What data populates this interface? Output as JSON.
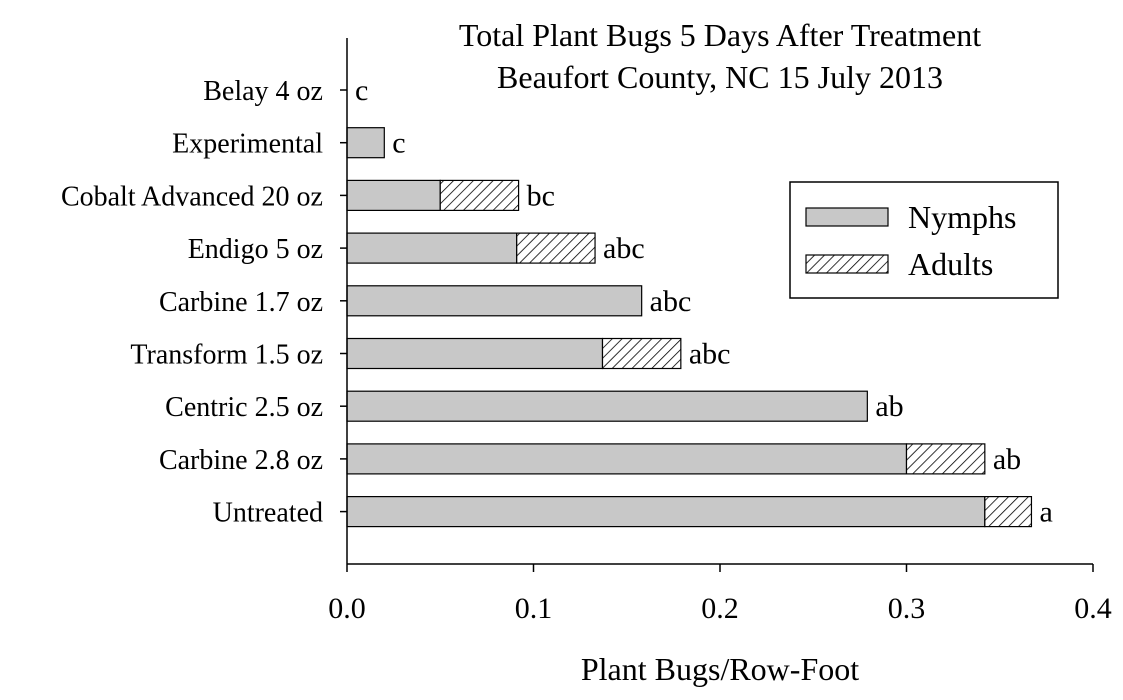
{
  "chart_data": {
    "type": "bar",
    "orientation": "horizontal",
    "stacked": true,
    "title": [
      "Total Plant Bugs 5 Days After Treatment",
      "Beaufort County, NC 15 July 2013"
    ],
    "xlabel": "Plant Bugs/Row-Foot",
    "ylabel": "",
    "xlim": [
      0.0,
      0.4
    ],
    "xticks": [
      "0.0",
      "0.1",
      "0.2",
      "0.3",
      "0.4"
    ],
    "grid": false,
    "legend_position": "right-upper",
    "categories": [
      "Belay 4 oz",
      "Experimental",
      "Cobalt Advanced 20 oz",
      "Endigo 5 oz",
      "Carbine 1.7 oz",
      "Transform 1.5 oz",
      "Centric 2.5 oz",
      "Carbine 2.8 oz",
      "Untreated"
    ],
    "series": [
      {
        "name": "Nymphs",
        "pattern": "solid-gray",
        "values": [
          0.0,
          0.02,
          0.05,
          0.091,
          0.158,
          0.137,
          0.279,
          0.3,
          0.342
        ]
      },
      {
        "name": "Adults",
        "pattern": "hatched",
        "values": [
          0.0,
          0.0,
          0.042,
          0.042,
          0.0,
          0.042,
          0.0,
          0.042,
          0.025
        ]
      }
    ],
    "annotations": [
      "c",
      "c",
      "bc",
      "abc",
      "abc",
      "abc",
      "ab",
      "ab",
      "a"
    ],
    "colors": {
      "nymphs_fill": "#c8c8c8",
      "adults_fill": "#ffffff",
      "stroke": "#000000"
    }
  }
}
